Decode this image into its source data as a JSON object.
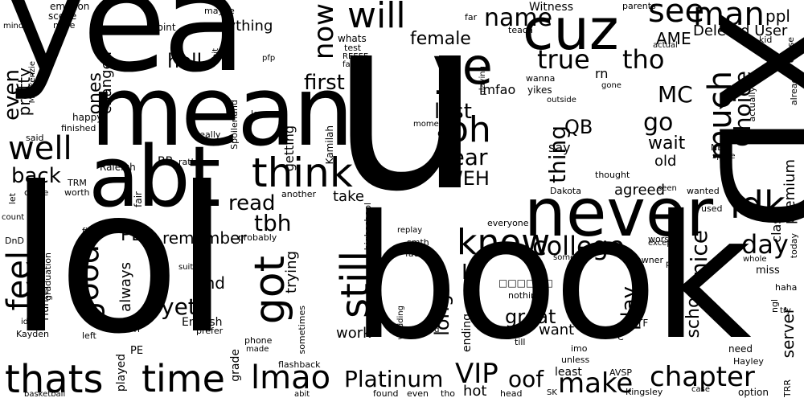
{
  "style": {
    "background": "#ffffff",
    "text_color": "#000000"
  },
  "words": {
    "yea": "yea",
    "u": "u",
    "XD": "XD",
    "lol": "lol",
    "book": "book",
    "mean": "mean",
    "abt": "abt",
    "never": "never",
    "cuz": "cuz",
    "ye": "ye",
    "will": "will",
    "know": "know",
    "think": "think",
    "feel": "feel",
    "good": "good",
    "well": "well",
    "still": "still",
    "got": "got",
    "thats": "thats",
    "time": "time",
    "lmao": "lmao",
    "oh": "oh",
    "idk": "idk",
    "much": "much",
    "choice": "Choice",
    "see": "see",
    "man": "man",
    "now": "now",
    "true": "true",
    "tho": "tho",
    "name": "name",
    "female": "female",
    "college": "college",
    "nice": "nice",
    "school": "school",
    "chapter": "chapter",
    "make": "make",
    "play": "play",
    "long": "long",
    "day": "day",
    "VIP": "VIP",
    "oof": "oof",
    "platinum": "Platinum",
    "yet": "yet",
    "tbh": "tbh",
    "read": "read",
    "hell": "hell",
    "first": "first",
    "even": "even",
    "back": "back",
    "last": "last",
    "year": "year",
    "WEH": "WEH",
    "go": "go",
    "MC": "MC",
    "thing": "thing",
    "QB": "QB",
    "LI": "LI",
    "PB": "PB",
    "great": "great",
    "trying": "trying",
    "ones": "ones",
    "pretty": "pretty",
    "changed": "changed",
    "always": "always",
    "remember": "remember",
    "find": "find",
    "take": "take",
    "premium": "premium",
    "class": "class",
    "server": "server",
    "wait": "wait",
    "old": "old",
    "anything": "anything",
    "AME": "AME",
    "deleted_user": "Deleted User",
    "ppl": "ppl",
    "witness": "Witness",
    "emotion": "emotion",
    "scene": "scene",
    "nope": "nope",
    "maybe": "maybe",
    "point": "point",
    "mind": "mind",
    "Mackenzie": "Mackenzie",
    "happy": "happy",
    "finished": "finished",
    "said": "said",
    "BB": "BB",
    "TRM": "TRM",
    "Raleigh": "Raleigh",
    "really": "really",
    "Spoilerland": "Spoilerland",
    "love": "love",
    "getting": "getting",
    "Kamilah": "Kamilah",
    "pfp": "pfp",
    "shit": "shit",
    "whats": "whats",
    "test": "test",
    "REEEE": "REEEE",
    "fancy": "fancy",
    "lmfao": "lmfao",
    "oop": "oop",
    "moment": "moment",
    "playing": "playing",
    "wanna": "wanna",
    "yikes": "yikes",
    "outside": "outside",
    "rn": "rn",
    "gone": "gone",
    "say": "say",
    "far": "far",
    "teach": "teach",
    "parents": "parents",
    "kid": "kid",
    "actual": "actual",
    "actually": "actually",
    "chose": "chose",
    "already": "already",
    "NB": "NB",
    "sprite": "sprite",
    "thought": "thought",
    "agreed": "agreed",
    "seen": "seen",
    "wanted": "wanted",
    "Dakota": "Dakota",
    "used": "used",
    "let": "let",
    "count": "count",
    "come": "come",
    "worth": "worth",
    "fair": "fair",
    "look": "look",
    "another": "another",
    "rather": "rather",
    "DnD": "DnD",
    "final": "final",
    "graduation": "graduation",
    "Hunter": "Hunter",
    "idea": "idea",
    "Kayden": "Kayden",
    "left": "left",
    "Pri": "Pri",
    "English": "English",
    "prefer": "prefer",
    "suit": "suit",
    "probably": "probably",
    "sometimes": "sometimes",
    "flashback": "flashback",
    "phone": "phone",
    "made": "made",
    "PE": "PE",
    "played": "played",
    "grade": "grade",
    "basketball": "basketball",
    "abit": "abit",
    "highschool": "highschool",
    "replay": "replay",
    "smth": "smth",
    "face": "face",
    "everyone": "everyone",
    "someone": "someone",
    "worse": "worse",
    "downer": "downer",
    "except": "except",
    "pain": "pain",
    "whole": "whole",
    "miss": "miss",
    "today": "today",
    "haha": "haha",
    "ngl": "ngl",
    "try": "try",
    "need": "need",
    "Hayley": "Hayley",
    "TRR": "TRR",
    "option": "option",
    "case": "case",
    "Kingsley": "Kingsley",
    "AVSP": "AVSP",
    "SK": "SK",
    "head": "head",
    "least": "least",
    "unless": "unless",
    "imo": "imo",
    "till": "till",
    "want": "want",
    "ending": "ending",
    "nothing": "nothing",
    "TF": "TF",
    "C": "C",
    "wedding": "wedding",
    "ard": "ard",
    "thats_true": "thats true",
    "found": "found",
    "even2": "even",
    "tho2": "tho",
    "hot": "hot",
    "work": "work",
    "glyphs": "□□□□□□"
  }
}
